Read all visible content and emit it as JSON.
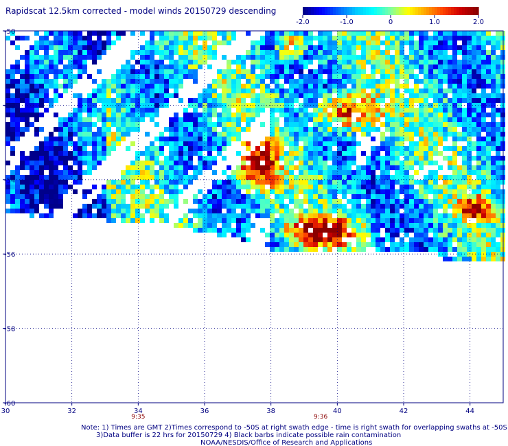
{
  "chart_data": {
    "type": "heatmap",
    "title": "Rapidscat 12.5km corrected - model winds 20150729 descending",
    "colorbar": {
      "colors": [
        "#00008b",
        "#0000ff",
        "#0066ff",
        "#00c8ff",
        "#00ffff",
        "#7fffa0",
        "#ffff00",
        "#ffa500",
        "#ff4500",
        "#d00000",
        "#8b0000"
      ],
      "range": [
        -2.0,
        2.0
      ],
      "tick_labels": [
        "-2.0",
        "-1.0",
        "0",
        "1.0",
        "2.0"
      ],
      "tick_values": [
        -2.0,
        -1.0,
        0,
        1.0,
        2.0
      ]
    },
    "x_ticks": [
      30,
      32,
      34,
      36,
      38,
      40,
      42,
      44
    ],
    "y_ticks": [
      -50,
      -52,
      -54,
      -56,
      -58,
      -60
    ],
    "y_tick_labels": [
      "-50",
      "-52",
      "-54",
      "-56",
      "-58",
      "-60"
    ],
    "xlim": [
      30,
      45
    ],
    "ylim": [
      -60,
      -50
    ],
    "grid": true,
    "time_labels": [
      {
        "lon": 34,
        "text": "9:35"
      },
      {
        "lon": 39.5,
        "text": "9:36"
      }
    ],
    "swath_description": "data covers approximately lon 30-45, lat -50 to -56",
    "notes": [
      "Note: 1) Times are GMT 2)Times correspond to -50S at right swath edge - time is right swath for overlapping swaths at -50S",
      "3)Data buffer is 22 hrs for 20150729 4) Black barbs indicate possible rain contamination",
      "NOAA/NESDIS/Office of Research and Applications"
    ]
  }
}
